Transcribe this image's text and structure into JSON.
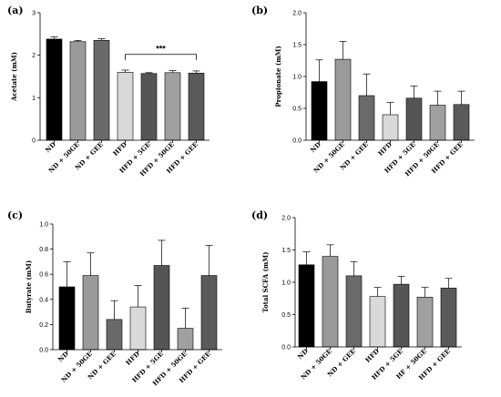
{
  "chart_data": [
    {
      "type": "bar",
      "panel_label": "(a)",
      "ylabel": "Acetate (mM)",
      "ylim": [
        0,
        3
      ],
      "yticks": [
        "0",
        "1",
        "2",
        "3"
      ],
      "categories": [
        "ND",
        "ND + 50GE",
        "ND + GEE",
        "HFD",
        "HFD + 5GE",
        "HFD + 50GE",
        "HFD + GEE"
      ],
      "values": [
        2.38,
        2.32,
        2.35,
        1.6,
        1.57,
        1.59,
        1.58
      ],
      "errors": [
        0.05,
        0.03,
        0.04,
        0.05,
        0.02,
        0.05,
        0.05
      ],
      "colors": [
        "#000000",
        "#9a9a9a",
        "#6a6a6a",
        "#d9d9d9",
        "#555555",
        "#a0a0a0",
        "#5a5a5a"
      ],
      "significance": {
        "label": "***",
        "from": 3,
        "to": 6
      }
    },
    {
      "type": "bar",
      "panel_label": "(b)",
      "ylabel": "Propionate (mM)",
      "ylim": [
        0,
        2
      ],
      "yticks": [
        "0.0",
        "0.5",
        "1.0",
        "1.5",
        "2.0"
      ],
      "categories": [
        "ND",
        "ND + 50GE",
        "ND + GEE",
        "HFD",
        "HFD + 5GE",
        "HFD + 50GE",
        "HFD + GEE"
      ],
      "values": [
        0.92,
        1.27,
        0.7,
        0.4,
        0.66,
        0.55,
        0.56
      ],
      "errors": [
        0.34,
        0.28,
        0.34,
        0.19,
        0.19,
        0.22,
        0.21
      ],
      "colors": [
        "#000000",
        "#9a9a9a",
        "#6a6a6a",
        "#d9d9d9",
        "#555555",
        "#a0a0a0",
        "#5a5a5a"
      ]
    },
    {
      "type": "bar",
      "panel_label": "(c)",
      "ylabel": "Butyrate (mM)",
      "ylim": [
        0,
        1
      ],
      "yticks": [
        "0.0",
        "0.2",
        "0.4",
        "0.6",
        "0.8",
        "1.0"
      ],
      "categories": [
        "ND",
        "ND + 50GE",
        "ND + GEE",
        "HFD",
        "HFD + 5GE",
        "HFD + 50GE",
        "HFD + GEE"
      ],
      "values": [
        0.5,
        0.59,
        0.24,
        0.34,
        0.67,
        0.17,
        0.59
      ],
      "errors": [
        0.2,
        0.18,
        0.15,
        0.17,
        0.2,
        0.16,
        0.24
      ],
      "colors": [
        "#000000",
        "#9a9a9a",
        "#6a6a6a",
        "#d9d9d9",
        "#555555",
        "#a0a0a0",
        "#5a5a5a"
      ]
    },
    {
      "type": "bar",
      "panel_label": "(d)",
      "ylabel": "Total SCFA (mM)",
      "ylim": [
        0,
        2
      ],
      "yticks": [
        "0.0",
        "0.5",
        "1.0",
        "1.5",
        "2.0"
      ],
      "categories": [
        "ND",
        "ND + 50GE",
        "ND + GEE",
        "HFD",
        "HFD + 5GE",
        "HF + 50GE",
        "HFD + GEE"
      ],
      "values": [
        1.27,
        1.4,
        1.1,
        0.78,
        0.97,
        0.77,
        0.91
      ],
      "errors": [
        0.2,
        0.18,
        0.22,
        0.14,
        0.12,
        0.15,
        0.15
      ],
      "colors": [
        "#000000",
        "#9a9a9a",
        "#6a6a6a",
        "#d9d9d9",
        "#555555",
        "#a0a0a0",
        "#5a5a5a"
      ]
    }
  ]
}
